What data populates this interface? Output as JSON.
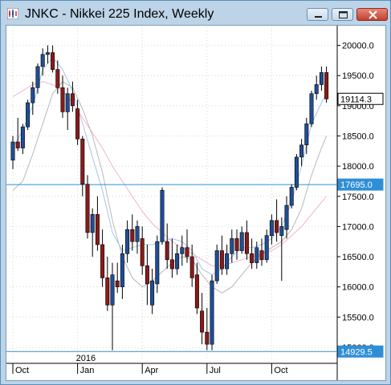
{
  "window": {
    "title": "JNKC - Nikkei 225 Index, Weekly",
    "buttons": [
      "minimize",
      "maximize",
      "close"
    ]
  },
  "chart_data": {
    "type": "candlestick",
    "ylim": [
      14800,
      20300
    ],
    "y_ticks": [
      "20000.0",
      "19500.0",
      "19000.0",
      "18500.0",
      "18000.0",
      "17500.0",
      "17000.0",
      "16500.0",
      "16000.0",
      "15500.0",
      "15000.0"
    ],
    "y_tick_values": [
      20000,
      19500,
      19000,
      18500,
      18000,
      17500,
      17000,
      16500,
      16000,
      15500,
      15000
    ],
    "x_labels": [
      "Oct",
      "Jan",
      "Apr",
      "Jul",
      "Oct"
    ],
    "x_label_weeks": [
      1,
      14,
      27,
      40,
      53
    ],
    "year_label": "2016",
    "year_label_week": 14,
    "price_labels": [
      {
        "text": "19114.3",
        "value": 19114.3,
        "style": "last"
      },
      {
        "text": "17695.0",
        "value": 17695.0,
        "style": "line"
      },
      {
        "text": "14929.5",
        "value": 14929.5,
        "style": "line"
      }
    ],
    "hlines": [
      17695.0,
      14929.5
    ],
    "colors": {
      "up": "#1f4e96",
      "down": "#8b1a1a",
      "hline": "#2f8fd6",
      "ma_fast": "#a9c4e6",
      "ma_mid": "#b8b8b8",
      "ma_slow": "#f0b6c8",
      "grid": "#d6d6d6"
    },
    "candles": [
      [
        18100,
        18500,
        17950,
        18400
      ],
      [
        18400,
        18800,
        18250,
        18300
      ],
      [
        18300,
        18700,
        18200,
        18650
      ],
      [
        18650,
        19100,
        18600,
        19050
      ],
      [
        19050,
        19400,
        18850,
        19300
      ],
      [
        19300,
        19700,
        19200,
        19650
      ],
      [
        19650,
        19950,
        19500,
        19850
      ],
      [
        19850,
        20000,
        19700,
        19880
      ],
      [
        19880,
        20000,
        19550,
        19600
      ],
      [
        19600,
        19750,
        19200,
        19300
      ],
      [
        19300,
        19500,
        18800,
        18900
      ],
      [
        18900,
        19300,
        18600,
        19200
      ],
      [
        19200,
        19400,
        18900,
        19000
      ],
      [
        18950,
        19100,
        18350,
        18450
      ],
      [
        18450,
        18500,
        17500,
        17700
      ],
      [
        17700,
        17850,
        16800,
        16900
      ],
      [
        16900,
        17300,
        16500,
        17200
      ],
      [
        17200,
        17500,
        16600,
        16700
      ],
      [
        16700,
        16950,
        16000,
        16150
      ],
      [
        16150,
        16500,
        15600,
        15700
      ],
      [
        15700,
        16400,
        14950,
        16200
      ],
      [
        16100,
        16400,
        15900,
        16000
      ],
      [
        16000,
        16700,
        15800,
        16550
      ],
      [
        16550,
        17100,
        16400,
        16950
      ],
      [
        16950,
        17200,
        16600,
        16750
      ],
      [
        16750,
        17100,
        16550,
        17000
      ],
      [
        16800,
        17000,
        16200,
        16350
      ],
      [
        16350,
        16700,
        15700,
        16050
      ],
      [
        15700,
        16300,
        15550,
        16100
      ],
      [
        16050,
        16850,
        15900,
        16750
      ],
      [
        16750,
        17650,
        16700,
        17600
      ],
      [
        16750,
        17050,
        16300,
        16450
      ],
      [
        16450,
        16800,
        16150,
        16300
      ],
      [
        16300,
        16700,
        16200,
        16550
      ],
      [
        16550,
        16850,
        16350,
        16650
      ],
      [
        16650,
        16950,
        16400,
        16500
      ],
      [
        16500,
        16700,
        16000,
        16150
      ],
      [
        16200,
        16400,
        15550,
        15650
      ],
      [
        15600,
        15900,
        15050,
        15250
      ],
      [
        15250,
        15650,
        14950,
        15050
      ],
      [
        15050,
        16200,
        14950,
        16100
      ],
      [
        16100,
        16700,
        16050,
        16600
      ],
      [
        16600,
        16850,
        16200,
        16300
      ],
      [
        16300,
        16700,
        16200,
        16550
      ],
      [
        16550,
        16950,
        16400,
        16800
      ],
      [
        16800,
        16950,
        16450,
        16600
      ],
      [
        16600,
        17000,
        16550,
        16900
      ],
      [
        16900,
        17100,
        16450,
        16550
      ],
      [
        16550,
        16800,
        16300,
        16400
      ],
      [
        16400,
        16750,
        16300,
        16650
      ],
      [
        16600,
        16800,
        16350,
        16450
      ],
      [
        16450,
        16950,
        16400,
        16850
      ],
      [
        16850,
        17200,
        16700,
        17100
      ],
      [
        17100,
        17450,
        16750,
        16900
      ],
      [
        16850,
        17150,
        16100,
        17000
      ],
      [
        16950,
        17500,
        16800,
        17350
      ],
      [
        17350,
        17700,
        17300,
        17650
      ],
      [
        17650,
        18200,
        17600,
        18150
      ],
      [
        18150,
        18450,
        18000,
        18350
      ],
      [
        18350,
        18800,
        18200,
        18700
      ],
      [
        18700,
        19250,
        18650,
        19200
      ],
      [
        19200,
        19500,
        19100,
        19350
      ],
      [
        19350,
        19650,
        19250,
        19550
      ],
      [
        19550,
        19650,
        19050,
        19114
      ]
    ],
    "ma_fast": [
      [
        1,
        18300
      ],
      [
        3,
        18600
      ],
      [
        5,
        19000
      ],
      [
        7,
        19600
      ],
      [
        9,
        19800
      ],
      [
        11,
        19600
      ],
      [
        13,
        19250
      ],
      [
        15,
        18700
      ],
      [
        17,
        18150
      ],
      [
        19,
        17600
      ],
      [
        21,
        16900
      ],
      [
        23,
        16600
      ],
      [
        25,
        16650
      ],
      [
        27,
        16700
      ],
      [
        29,
        16700
      ],
      [
        31,
        16750
      ],
      [
        33,
        16800
      ],
      [
        35,
        16750
      ],
      [
        37,
        16600
      ],
      [
        39,
        16300
      ],
      [
        41,
        16200
      ],
      [
        43,
        16300
      ],
      [
        45,
        16500
      ],
      [
        47,
        16650
      ],
      [
        49,
        16650
      ],
      [
        51,
        16700
      ],
      [
        53,
        16800
      ],
      [
        55,
        17000
      ],
      [
        57,
        17400
      ],
      [
        59,
        18000
      ],
      [
        61,
        18700
      ],
      [
        63,
        19050
      ],
      [
        64,
        19200
      ]
    ],
    "ma_mid": [
      [
        1,
        17600
      ],
      [
        3,
        17750
      ],
      [
        5,
        18200
      ],
      [
        7,
        18700
      ],
      [
        9,
        19200
      ],
      [
        11,
        19400
      ],
      [
        13,
        19300
      ],
      [
        15,
        18950
      ],
      [
        17,
        18500
      ],
      [
        19,
        17900
      ],
      [
        21,
        17100
      ],
      [
        23,
        16500
      ],
      [
        25,
        16150
      ],
      [
        27,
        16000
      ],
      [
        29,
        16100
      ],
      [
        31,
        16250
      ],
      [
        33,
        16400
      ],
      [
        35,
        16500
      ],
      [
        37,
        16450
      ],
      [
        39,
        16200
      ],
      [
        41,
        16000
      ],
      [
        43,
        15900
      ],
      [
        45,
        16000
      ],
      [
        47,
        16200
      ],
      [
        49,
        16400
      ],
      [
        51,
        16550
      ],
      [
        53,
        16650
      ],
      [
        55,
        16750
      ],
      [
        57,
        16950
      ],
      [
        59,
        17300
      ],
      [
        61,
        17850
      ],
      [
        63,
        18300
      ],
      [
        64,
        18500
      ]
    ],
    "ma_slow": [
      [
        1,
        19150
      ],
      [
        3,
        19250
      ],
      [
        5,
        19350
      ],
      [
        7,
        19400
      ],
      [
        9,
        19350
      ],
      [
        11,
        19250
      ],
      [
        13,
        19050
      ],
      [
        15,
        18800
      ],
      [
        17,
        18550
      ],
      [
        19,
        18300
      ],
      [
        21,
        18000
      ],
      [
        23,
        17750
      ],
      [
        25,
        17500
      ],
      [
        27,
        17250
      ],
      [
        29,
        17050
      ],
      [
        31,
        16900
      ],
      [
        33,
        16750
      ],
      [
        35,
        16650
      ],
      [
        37,
        16550
      ],
      [
        39,
        16450
      ],
      [
        41,
        16350
      ],
      [
        43,
        16350
      ],
      [
        45,
        16400
      ],
      [
        47,
        16450
      ],
      [
        49,
        16500
      ],
      [
        51,
        16550
      ],
      [
        53,
        16600
      ],
      [
        55,
        16700
      ],
      [
        57,
        16850
      ],
      [
        59,
        17000
      ],
      [
        61,
        17200
      ],
      [
        63,
        17400
      ],
      [
        64,
        17500
      ]
    ]
  }
}
